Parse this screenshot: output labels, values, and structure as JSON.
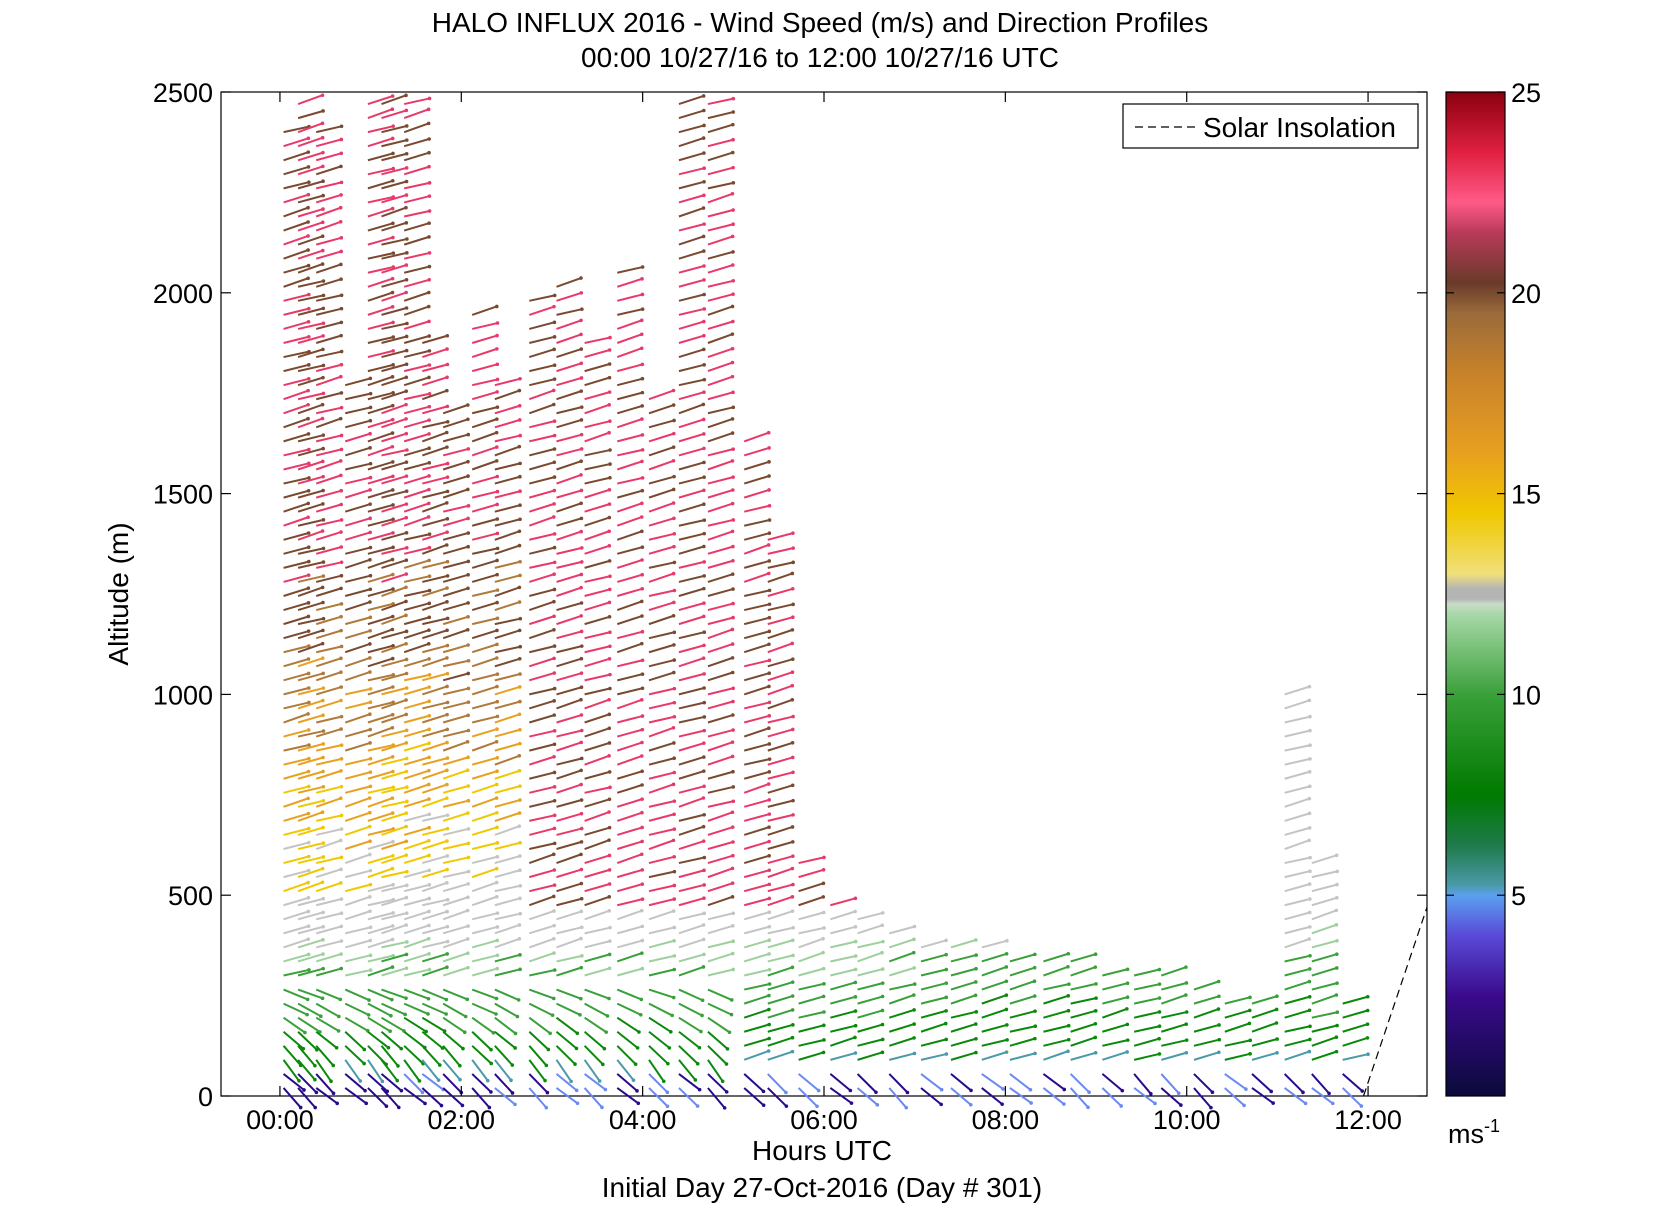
{
  "chart_data": {
    "type": "scatter",
    "title": "HALO INFLUX 2016 - Wind Speed (m/s) and Direction Profiles",
    "subtitle": "00:00 10/27/16 to 12:00 10/27/16  UTC",
    "xlabel": "Hours UTC",
    "footer": "Initial Day 27-Oct-2016 (Day # 301)",
    "ylabel": "Altitude (m)",
    "xlim": [
      -0.65,
      12.65
    ],
    "ylim": [
      0,
      2500
    ],
    "xticks": [
      {
        "value": 0,
        "label": "00:00"
      },
      {
        "value": 2,
        "label": "02:00"
      },
      {
        "value": 4,
        "label": "04:00"
      },
      {
        "value": 6,
        "label": "06:00"
      },
      {
        "value": 8,
        "label": "08:00"
      },
      {
        "value": 10,
        "label": "10:00"
      },
      {
        "value": 12,
        "label": "12:00"
      }
    ],
    "yticks": [
      {
        "value": 0,
        "label": "0"
      },
      {
        "value": 500,
        "label": "500"
      },
      {
        "value": 1000,
        "label": "1000"
      },
      {
        "value": 1500,
        "label": "1500"
      },
      {
        "value": 2000,
        "label": "2000"
      },
      {
        "value": 2500,
        "label": "2500"
      }
    ],
    "colorbar": {
      "range": [
        0,
        25
      ],
      "ticks": [
        {
          "value": 5,
          "label": "5"
        },
        {
          "value": 10,
          "label": "10"
        },
        {
          "value": 15,
          "label": "15"
        },
        {
          "value": 20,
          "label": "20"
        },
        {
          "value": 25,
          "label": "25"
        }
      ],
      "unit_base": "ms",
      "unit_exp": "-1"
    },
    "legend": {
      "label": "Solar Insolation",
      "position": "top-right",
      "style": "dashed"
    },
    "solar_insolation": {
      "x": [
        11.95,
        12.65
      ],
      "y": [
        0,
        470
      ]
    },
    "profile_times": [
      0.04,
      0.2,
      0.4,
      0.72,
      0.97,
      1.12,
      1.37,
      1.57,
      1.8,
      2.12,
      2.37,
      2.75,
      3.05,
      3.36,
      3.72,
      4.07,
      4.4,
      4.72,
      5.12,
      5.38,
      5.72,
      6.07,
      6.37,
      6.72,
      7.07,
      7.4,
      7.74,
      8.05,
      8.42,
      8.72,
      9.07,
      9.42,
      9.72,
      10.08,
      10.42,
      10.72,
      11.08,
      11.38,
      11.72
    ],
    "profile_tops": [
      2400,
      2500,
      2400,
      1800,
      2500,
      2500,
      2500,
      1900,
      1700,
      1950,
      1780,
      1980,
      2040,
      1900,
      2050,
      1750,
      2500,
      2500,
      1650,
      1400,
      580,
      500,
      450,
      420,
      400,
      390,
      380,
      360,
      350,
      340,
      320,
      310,
      300,
      280,
      260,
      250,
      1020,
      600,
      240
    ],
    "speed_stops": [
      0.3,
      4,
      5,
      7.5,
      10,
      12.5,
      13.5,
      16.5,
      17.5,
      19,
      20.5,
      22,
      25
    ],
    "sample_step_m": 35
  }
}
